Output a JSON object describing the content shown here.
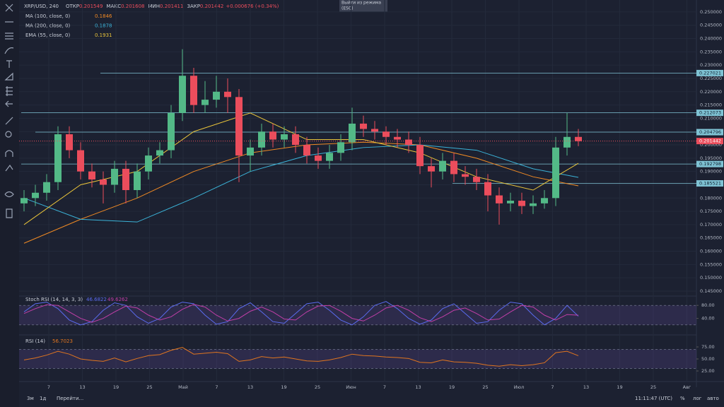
{
  "header": {
    "symbol": "XRP/USD, 240",
    "open_label": "ОТКР",
    "open": "0.201549",
    "high_label": "МАКС",
    "high": "0.201608",
    "low_label": "МИН",
    "low": "0.201411",
    "close_label": "ЗАКР",
    "close": "0.201442",
    "change": "+0.000676 (+0.34%)"
  },
  "tooltip": [
    "Выйти из режима",
    "(ESC)"
  ],
  "footer": {
    "ranges": [
      "3м",
      "1д"
    ],
    "goto": "Перейти...",
    "time": "11:11:47 (UTC)",
    "percent": "%",
    "log": "лог",
    "auto": "авто"
  },
  "chart_data": {
    "type": "candlestick",
    "ylim": [
      0.1434,
      0.2545
    ],
    "yticks": [
      {
        "value": 0.25,
        "label": "0.250000"
      },
      {
        "value": 0.245,
        "label": "0.245000"
      },
      {
        "value": 0.24,
        "label": "0.240000"
      },
      {
        "value": 0.235,
        "label": "0.235000"
      },
      {
        "value": 0.23,
        "label": "0.230000"
      },
      {
        "value": 0.225,
        "label": "0.225000"
      },
      {
        "value": 0.22,
        "label": "0.220000"
      },
      {
        "value": 0.215,
        "label": "0.215000"
      },
      {
        "value": 0.21,
        "label": "0.210000"
      },
      {
        "value": 0.205,
        "label": "0.205000"
      },
      {
        "value": 0.2,
        "label": "0.200000"
      },
      {
        "value": 0.195,
        "label": "0.195000"
      },
      {
        "value": 0.19,
        "label": "0.190000"
      },
      {
        "value": 0.185,
        "label": "0.185000"
      },
      {
        "value": 0.18,
        "label": "0.180000"
      },
      {
        "value": 0.175,
        "label": "0.175000"
      },
      {
        "value": 0.17,
        "label": "0.170000"
      },
      {
        "value": 0.165,
        "label": "0.165000"
      },
      {
        "value": 0.16,
        "label": "0.160000"
      },
      {
        "value": 0.155,
        "label": "0.155000"
      },
      {
        "value": 0.15,
        "label": "0.150000"
      },
      {
        "value": 0.145,
        "label": "0.145000"
      }
    ],
    "time_labels": [
      "7",
      "13",
      "19",
      "25",
      "Май",
      "7",
      "13",
      "19",
      "25",
      "Июн",
      "7",
      "13",
      "19",
      "25",
      "Июл",
      "7",
      "13",
      "19",
      "25",
      "Авг"
    ],
    "up_color": "#53b987",
    "down_color": "#eb4d5c",
    "candles": [
      [
        0.178,
        0.183,
        0.175,
        0.18
      ],
      [
        0.18,
        0.185,
        0.177,
        0.182
      ],
      [
        0.182,
        0.189,
        0.179,
        0.186
      ],
      [
        0.186,
        0.207,
        0.183,
        0.204
      ],
      [
        0.204,
        0.207,
        0.195,
        0.198
      ],
      [
        0.198,
        0.201,
        0.187,
        0.19
      ],
      [
        0.19,
        0.193,
        0.184,
        0.187
      ],
      [
        0.187,
        0.19,
        0.178,
        0.185
      ],
      [
        0.185,
        0.194,
        0.182,
        0.191
      ],
      [
        0.191,
        0.194,
        0.178,
        0.183
      ],
      [
        0.183,
        0.193,
        0.18,
        0.19
      ],
      [
        0.19,
        0.199,
        0.187,
        0.196
      ],
      [
        0.196,
        0.201,
        0.193,
        0.198
      ],
      [
        0.198,
        0.215,
        0.195,
        0.212
      ],
      [
        0.212,
        0.236,
        0.209,
        0.226
      ],
      [
        0.226,
        0.229,
        0.212,
        0.215
      ],
      [
        0.215,
        0.224,
        0.212,
        0.217
      ],
      [
        0.217,
        0.226,
        0.214,
        0.22
      ],
      [
        0.22,
        0.225,
        0.212,
        0.218
      ],
      [
        0.218,
        0.221,
        0.186,
        0.196
      ],
      [
        0.196,
        0.202,
        0.19,
        0.199
      ],
      [
        0.199,
        0.208,
        0.196,
        0.205
      ],
      [
        0.205,
        0.208,
        0.199,
        0.202
      ],
      [
        0.202,
        0.207,
        0.199,
        0.204
      ],
      [
        0.204,
        0.207,
        0.197,
        0.2
      ],
      [
        0.2,
        0.203,
        0.193,
        0.196
      ],
      [
        0.196,
        0.199,
        0.191,
        0.194
      ],
      [
        0.194,
        0.2,
        0.191,
        0.197
      ],
      [
        0.197,
        0.204,
        0.194,
        0.201
      ],
      [
        0.201,
        0.214,
        0.198,
        0.208
      ],
      [
        0.208,
        0.211,
        0.203,
        0.206
      ],
      [
        0.206,
        0.209,
        0.202,
        0.205
      ],
      [
        0.205,
        0.207,
        0.2,
        0.203
      ],
      [
        0.203,
        0.206,
        0.199,
        0.202
      ],
      [
        0.202,
        0.205,
        0.197,
        0.2
      ],
      [
        0.2,
        0.203,
        0.189,
        0.192
      ],
      [
        0.192,
        0.195,
        0.184,
        0.19
      ],
      [
        0.19,
        0.197,
        0.187,
        0.194
      ],
      [
        0.194,
        0.197,
        0.186,
        0.189
      ],
      [
        0.189,
        0.192,
        0.185,
        0.188
      ],
      [
        0.188,
        0.191,
        0.183,
        0.186
      ],
      [
        0.186,
        0.189,
        0.175,
        0.181
      ],
      [
        0.181,
        0.184,
        0.17,
        0.178
      ],
      [
        0.178,
        0.182,
        0.175,
        0.179
      ],
      [
        0.179,
        0.182,
        0.174,
        0.177
      ],
      [
        0.177,
        0.181,
        0.174,
        0.178
      ],
      [
        0.178,
        0.183,
        0.176,
        0.18
      ],
      [
        0.18,
        0.203,
        0.177,
        0.199
      ],
      [
        0.199,
        0.212,
        0.196,
        0.203
      ],
      [
        0.203,
        0.206,
        0.1995,
        0.2014
      ]
    ],
    "levels": [
      0.227021,
      0.212073,
      0.204796,
      0.192798,
      0.185521
    ],
    "level_color": "#7fc3d4",
    "last_price": 0.201442,
    "series": [
      {
        "name": "MA (100, close, 0)",
        "value_label": "0.1846",
        "color": "#f08a24",
        "x": [
          0,
          5,
          10,
          15,
          20,
          25,
          30,
          35,
          40,
          45,
          49
        ],
        "values": [
          0.163,
          0.172,
          0.18,
          0.19,
          0.197,
          0.2,
          0.201,
          0.2,
          0.195,
          0.188,
          0.1846
        ]
      },
      {
        "name": "MA (200, close, 0)",
        "value_label": "0.1878",
        "color": "#3bb3d8",
        "x": [
          0,
          5,
          10,
          15,
          20,
          25,
          30,
          35,
          40,
          45,
          49
        ],
        "values": [
          0.18,
          0.172,
          0.171,
          0.18,
          0.19,
          0.196,
          0.199,
          0.2,
          0.198,
          0.191,
          0.1878
        ]
      },
      {
        "name": "EMA (55, close, 0)",
        "value_label": "0.1931",
        "color": "#e8c33a",
        "x": [
          0,
          5,
          10,
          15,
          20,
          25,
          30,
          35,
          40,
          45,
          49
        ],
        "values": [
          0.17,
          0.185,
          0.19,
          0.205,
          0.212,
          0.202,
          0.202,
          0.197,
          0.188,
          0.183,
          0.1931
        ]
      }
    ],
    "stoch": {
      "name": "Stoch RSI (14, 14, 3, 3)",
      "ylim": [
        0,
        100
      ],
      "yticks": [
        {
          "value": 80,
          "label": "80.00"
        },
        {
          "value": 40,
          "label": "40.00"
        }
      ],
      "bands": [
        20,
        80
      ],
      "series": [
        {
          "color": "#5b6cf0",
          "values": [
            60,
            85,
            90,
            70,
            35,
            20,
            30,
            65,
            88,
            80,
            45,
            25,
            40,
            75,
            90,
            85,
            50,
            22,
            30,
            70,
            88,
            60,
            30,
            25,
            55,
            85,
            90,
            65,
            35,
            20,
            45,
            80,
            92,
            70,
            40,
            22,
            35,
            70,
            85,
            55,
            25,
            30,
            65,
            90,
            85,
            50,
            20,
            40,
            80,
            46.6822
          ]
        },
        {
          "color": "#c23fa8",
          "values": [
            55,
            70,
            82,
            80,
            60,
            40,
            28,
            40,
            60,
            78,
            72,
            50,
            35,
            45,
            68,
            83,
            75,
            50,
            32,
            40,
            62,
            75,
            60,
            38,
            35,
            60,
            78,
            80,
            62,
            40,
            32,
            50,
            72,
            80,
            65,
            42,
            30,
            45,
            65,
            72,
            55,
            35,
            38,
            60,
            80,
            75,
            50,
            35,
            52,
            49.6262
          ]
        }
      ]
    },
    "rsi": {
      "name": "RSI (14)",
      "ylim": [
        0,
        100
      ],
      "yticks": [
        {
          "value": 75,
          "label": "75.00"
        },
        {
          "value": 50,
          "label": "50.00"
        },
        {
          "value": 25,
          "label": "25.00"
        }
      ],
      "bands": [
        30,
        70
      ],
      "color": "#e0751f",
      "values": [
        48,
        52,
        58,
        66,
        60,
        50,
        47,
        45,
        52,
        44,
        51,
        57,
        59,
        68,
        74,
        60,
        62,
        64,
        61,
        45,
        48,
        55,
        52,
        54,
        50,
        46,
        45,
        48,
        53,
        60,
        57,
        56,
        54,
        53,
        51,
        43,
        42,
        48,
        44,
        43,
        41,
        37,
        35,
        38,
        36,
        38,
        42,
        63,
        66,
        56.7023
      ]
    }
  }
}
